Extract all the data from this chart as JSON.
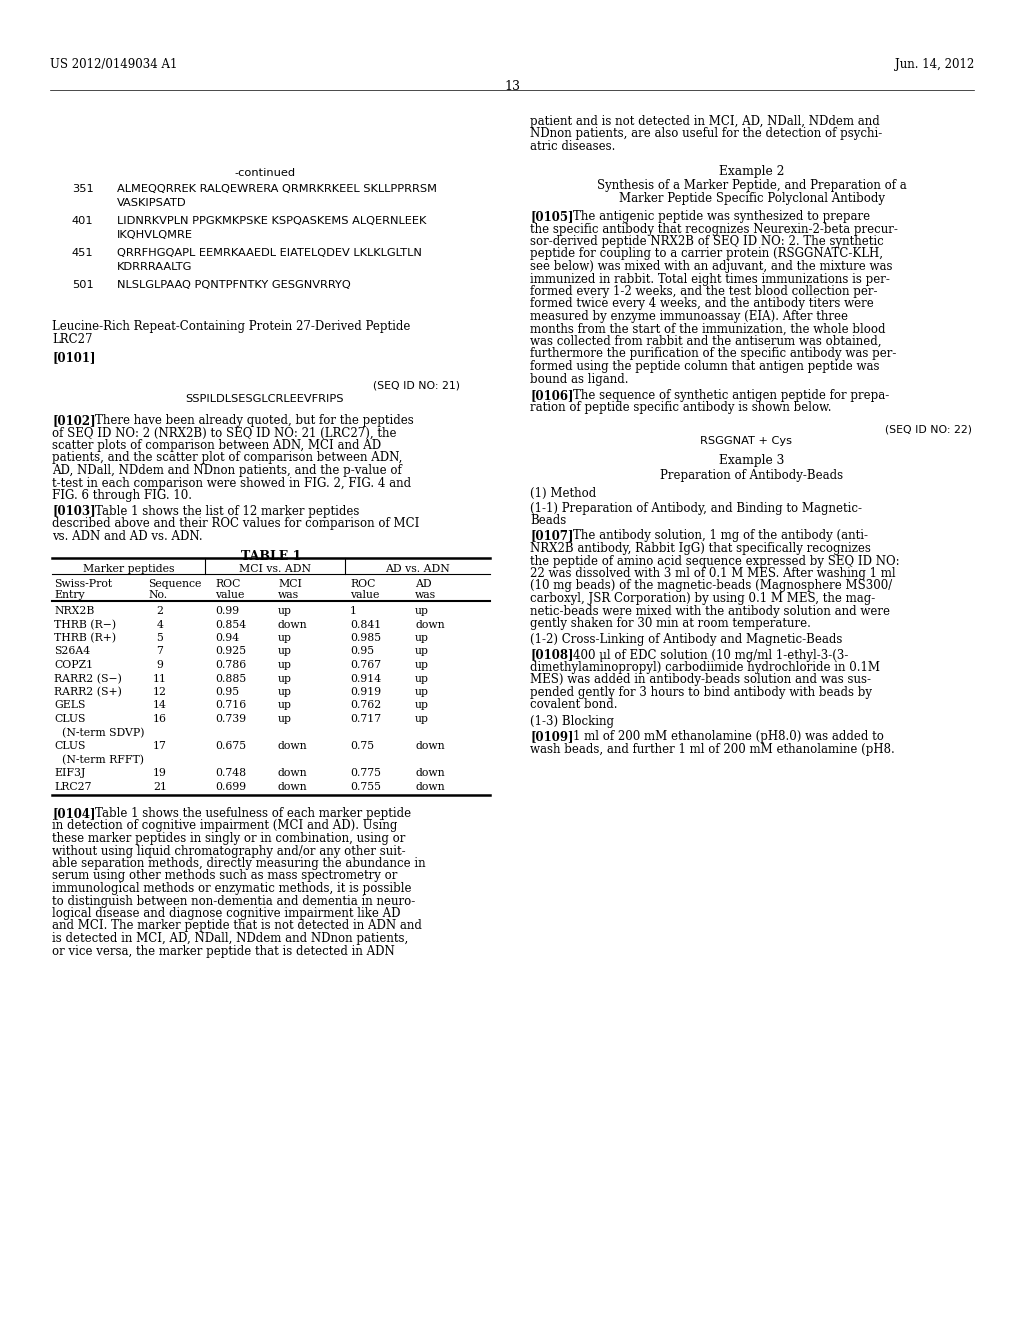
{
  "bg_color": "#ffffff",
  "header_left": "US 2012/0149034 A1",
  "header_right": "Jun. 14, 2012",
  "page_number": "13",
  "left_col": {
    "continued_label": "-continued",
    "sequence_entries": [
      {
        "num": "351",
        "line1": "ALMEQQRREK RALQEWRERA QRMRKRKEEL SKLLPPRRSM",
        "line2": "VASKIPSATD"
      },
      {
        "num": "401",
        "line1": "LIDNRKVPLN PPGKMKPSKE KSPQASKEMS ALQERNLEEK",
        "line2": "IKQHVLQMRE"
      },
      {
        "num": "451",
        "line1": "QRRFHGQAPL EEMRKAAEDL EIATELQDEV LKLKLGLTLN",
        "line2": "KDRRRAALTG"
      },
      {
        "num": "501",
        "line1": "NLSLGLPAAQ PQNTPFNTKY GESGNVRRYQ",
        "line2": ""
      }
    ],
    "section_title1": "Leucine-Rich Repeat-Containing Protein 27-Derived Peptide",
    "section_title2": "LRC27",
    "paragraph_0101": "[0101]",
    "seq_id_label": "(SEQ ID NO: 21)",
    "seq_id_sequence": "SSPILDLSESGLCRLEEVFRIPS",
    "para_0102_label": "[0102]",
    "para_0102_first": "There have been already quoted, but for the peptides",
    "para_0102_body": [
      "of SEQ ID NO: 2 (NRX2B) to SEQ ID NO: 21 (LRC27), the",
      "scatter plots of comparison between ADN, MCI and AD",
      "patients, and the scatter plot of comparison between ADN,",
      "AD, NDall, NDdem and NDnon patients, and the p-value of",
      "t-test in each comparison were showed in FIG. 2, FIG. 4 and",
      "FIG. 6 through FIG. 10."
    ],
    "para_0103_label": "[0103]",
    "para_0103_first": "Table 1 shows the list of 12 marker peptides",
    "para_0103_body": [
      "described above and their ROC values for comparison of MCI",
      "vs. ADN and AD vs. ADN."
    ],
    "table_title": "TABLE 1",
    "table_rows": [
      [
        "NRX2B",
        "2",
        "0.99",
        "up",
        "1",
        "up"
      ],
      [
        "THRB (R−)",
        "4",
        "0.854",
        "down",
        "0.841",
        "down"
      ],
      [
        "THRB (R+)",
        "5",
        "0.94",
        "up",
        "0.985",
        "up"
      ],
      [
        "S26A4",
        "7",
        "0.925",
        "up",
        "0.95",
        "up"
      ],
      [
        "COPZ1",
        "9",
        "0.786",
        "up",
        "0.767",
        "up"
      ],
      [
        "RARR2 (S−)",
        "11",
        "0.885",
        "up",
        "0.914",
        "up"
      ],
      [
        "RARR2 (S+)",
        "12",
        "0.95",
        "up",
        "0.919",
        "up"
      ],
      [
        "GELS",
        "14",
        "0.716",
        "up",
        "0.762",
        "up"
      ],
      [
        "CLUS",
        "16",
        "0.739",
        "up",
        "0.717",
        "up"
      ],
      [
        "(N-term SDVP)",
        "",
        "",
        "",
        "",
        ""
      ],
      [
        "CLUS",
        "17",
        "0.675",
        "down",
        "0.75",
        "down"
      ],
      [
        "(N-term RFFT)",
        "",
        "",
        "",
        "",
        ""
      ],
      [
        "EIF3J",
        "19",
        "0.748",
        "down",
        "0.775",
        "down"
      ],
      [
        "LRC27",
        "21",
        "0.699",
        "down",
        "0.755",
        "down"
      ]
    ],
    "para_0104_label": "[0104]",
    "para_0104_first": "Table 1 shows the usefulness of each marker peptide",
    "para_0104_body": [
      "in detection of cognitive impairment (MCI and AD). Using",
      "these marker peptides in singly or in combination, using or",
      "without using liquid chromatography and/or any other suit-",
      "able separation methods, directly measuring the abundance in",
      "serum using other methods such as mass spectrometry or",
      "immunological methods or enzymatic methods, it is possible",
      "to distinguish between non-dementia and dementia in neuro-",
      "logical disease and diagnose cognitive impairment like AD",
      "and MCI. The marker peptide that is not detected in ADN and",
      "is detected in MCI, AD, NDall, NDdem and NDnon patients,",
      "or vice versa, the marker peptide that is detected in ADN"
    ]
  },
  "right_col": {
    "intro_lines": [
      "patient and is not detected in MCI, AD, NDall, NDdem and",
      "NDnon patients, are also useful for the detection of psychi-",
      "atric diseases."
    ],
    "example2_title": "Example 2",
    "example2_sub1": "Synthesis of a Marker Peptide, and Preparation of a",
    "example2_sub2": "Marker Peptide Specific Polyclonal Antibody",
    "para_0105_label": "[0105]",
    "para_0105_first": "The antigenic peptide was synthesized to prepare",
    "para_0105_body": [
      "the specific antibody that recognizes Neurexin-2-beta precur-",
      "sor-derived peptide NRX2B of SEQ ID NO: 2. The synthetic",
      "peptide for coupling to a carrier protein (RSGGNATC-KLH,",
      "see below) was mixed with an adjuvant, and the mixture was",
      "immunized in rabbit. Total eight times immunizations is per-",
      "formed every 1-2 weeks, and the test blood collection per-",
      "formed twice every 4 weeks, and the antibody titers were",
      "measured by enzyme immunoassay (EIA). After three",
      "months from the start of the immunization, the whole blood",
      "was collected from rabbit and the antiserum was obtained,",
      "furthermore the purification of the specific antibody was per-",
      "formed using the peptide column that antigen peptide was",
      "bound as ligand."
    ],
    "para_0106_label": "[0106]",
    "para_0106_first": "The sequence of synthetic antigen peptide for prepa-",
    "para_0106_body": [
      "ration of peptide specific antibody is shown below."
    ],
    "seq22_label": "(SEQ ID NO: 22)",
    "seq22_seq": "RSGGNAT + Cys",
    "example3_title": "Example 3",
    "example3_sub": "Preparation of Antibody-Beads",
    "method_label": "(1) Method",
    "method_11_line1": "(1-1) Preparation of Antibody, and Binding to Magnetic-",
    "method_11_line2": "Beads",
    "para_0107_label": "[0107]",
    "para_0107_first": "The antibody solution, 1 mg of the antibody (anti-",
    "para_0107_body": [
      "NRX2B antibody, Rabbit IgG) that specifically recognizes",
      "the peptide of amino acid sequence expressed by SEQ ID NO:",
      "22 was dissolved with 3 ml of 0.1 M MES. After washing 1 ml",
      "(10 mg beads) of the magnetic-beads (Magnosphere MS300/",
      "carboxyl, JSR Corporation) by using 0.1 M MES, the mag-",
      "netic-beads were mixed with the antibody solution and were",
      "gently shaken for 30 min at room temperature."
    ],
    "method_12": "(1-2) Cross-Linking of Antibody and Magnetic-Beads",
    "para_0108_label": "[0108]",
    "para_0108_first": "400 μl of EDC solution (10 mg/ml 1-ethyl-3-(3-",
    "para_0108_body": [
      "dimethylaminopropyl) carbodiimide hydrochloride in 0.1M",
      "MES) was added in antibody-beads solution and was sus-",
      "pended gently for 3 hours to bind antibody with beads by",
      "covalent bond."
    ],
    "method_13": "(1-3) Blocking",
    "para_0109_label": "[0109]",
    "para_0109_first": "1 ml of 200 mM ethanolamine (pH8.0) was added to",
    "para_0109_body": [
      "wash beads, and further 1 ml of 200 mM ethanolamine (pH8."
    ]
  }
}
